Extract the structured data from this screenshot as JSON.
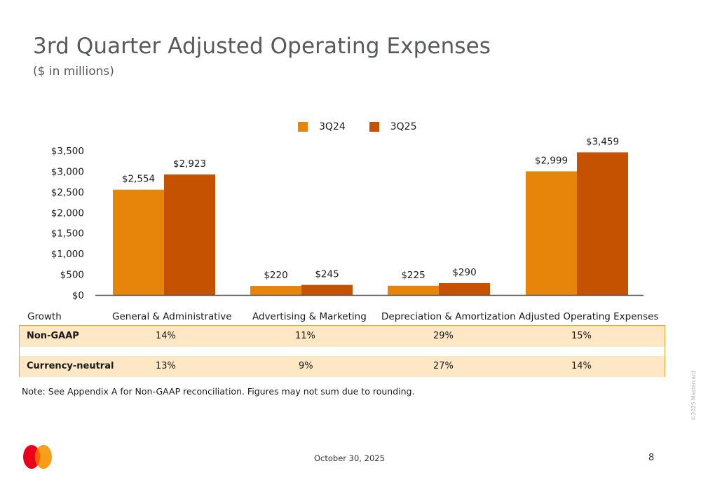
{
  "header": {
    "title": "3rd Quarter Adjusted Operating Expenses",
    "subtitle": "($ in millions)"
  },
  "colors": {
    "series_3Q24": "#e6850a",
    "series_3Q25": "#c45200",
    "table_fill": "#fde7c4",
    "table_border": "#f6a623"
  },
  "chart_data": {
    "type": "bar",
    "title": "3rd Quarter Adjusted Operating Expenses",
    "subtitle": "($ in millions)",
    "xlabel": "",
    "ylabel": "",
    "categories": [
      "General & Administrative",
      "Advertising & Marketing",
      "Depreciation & Amortization",
      "Adjusted Operating Expenses"
    ],
    "series": [
      {
        "name": "3Q24",
        "values": [
          2554,
          220,
          225,
          2999
        ],
        "labels": [
          "$2,554",
          "$220",
          "$225",
          "$2,999"
        ]
      },
      {
        "name": "3Q25",
        "values": [
          2923,
          245,
          290,
          3459
        ],
        "labels": [
          "$2,923",
          "$245",
          "$290",
          "$3,459"
        ]
      }
    ],
    "ylim": [
      0,
      3500
    ],
    "yticks": [
      0,
      500,
      1000,
      1500,
      2000,
      2500,
      3000,
      3500
    ],
    "ytick_labels": [
      "$0",
      "$500",
      "$1,000",
      "$1,500",
      "$2,000",
      "$2,500",
      "$3,000",
      "$3,500"
    ],
    "grid": false,
    "legend_position": "top-center"
  },
  "growth_table": {
    "header_label": "Growth",
    "columns": [
      "General & Administrative",
      "Advertising & Marketing",
      "Depreciation & Amortization",
      "Adjusted Operating Expenses"
    ],
    "rows": [
      {
        "label": "Non-GAAP",
        "values": [
          "14%",
          "11%",
          "29%",
          "15%"
        ]
      },
      {
        "label": "Currency-neutral",
        "values": [
          "13%",
          "9%",
          "27%",
          "14%"
        ]
      }
    ]
  },
  "note": "Note: See Appendix A for Non-GAAP reconciliation. Figures may not sum due to rounding.",
  "footer": {
    "date": "October 30, 2025",
    "page_number": "8",
    "copyright": "©2025 Mastercard",
    "logo": "mastercard-logo"
  }
}
